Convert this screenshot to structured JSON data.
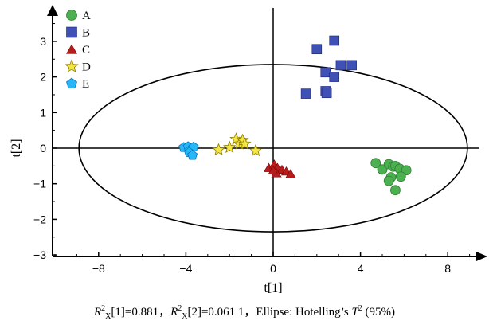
{
  "chart_data": {
    "type": "scatter",
    "title": "",
    "xlabel": "t[1]",
    "ylabel": "t[2]",
    "xlim": [
      -10,
      10
    ],
    "ylim": [
      -3,
      3.8
    ],
    "xticks": [
      -8,
      -4,
      0,
      4,
      8
    ],
    "yticks": [
      -3,
      -2,
      -1,
      0,
      1,
      2,
      3
    ],
    "tick_labels_x": [
      "−8",
      "−4",
      "0",
      "4",
      "8"
    ],
    "tick_labels_y": [
      "−3",
      "−2",
      "−1",
      "0",
      "1",
      "2",
      "3"
    ],
    "grid": false,
    "legend_position": "top-left",
    "ellipse": {
      "center": [
        0,
        0
      ],
      "semi_axis_x": 8.9,
      "semi_axis_y": 2.35
    },
    "series": [
      {
        "name": "A",
        "marker": "circle",
        "color": "#4caf50",
        "points": [
          [
            4.7,
            -0.42
          ],
          [
            5.0,
            -0.6
          ],
          [
            5.3,
            -0.45
          ],
          [
            5.5,
            -0.52
          ],
          [
            5.6,
            -0.5
          ],
          [
            5.8,
            -0.58
          ],
          [
            6.1,
            -0.62
          ],
          [
            5.4,
            -0.82
          ],
          [
            5.85,
            -0.8
          ],
          [
            5.3,
            -0.92
          ],
          [
            5.6,
            -1.18
          ]
        ]
      },
      {
        "name": "B",
        "marker": "square",
        "color": "#3f51b5",
        "points": [
          [
            2.8,
            3.02
          ],
          [
            2.0,
            2.78
          ],
          [
            3.1,
            2.33
          ],
          [
            3.6,
            2.33
          ],
          [
            2.4,
            2.13
          ],
          [
            2.8,
            2.0
          ],
          [
            2.4,
            1.6
          ],
          [
            2.45,
            1.55
          ],
          [
            1.5,
            1.53
          ]
        ]
      },
      {
        "name": "C",
        "marker": "triangle",
        "color": "#b71c1c",
        "points": [
          [
            -0.2,
            -0.55
          ],
          [
            0.05,
            -0.45
          ],
          [
            0.2,
            -0.55
          ],
          [
            0.4,
            -0.6
          ],
          [
            0.6,
            -0.65
          ],
          [
            0.8,
            -0.72
          ],
          [
            0.15,
            -0.7
          ],
          [
            0.0,
            -0.62
          ]
        ]
      },
      {
        "name": "D",
        "marker": "star",
        "color": "#f4e542",
        "points": [
          [
            -2.5,
            -0.05
          ],
          [
            -2.0,
            0.02
          ],
          [
            -1.7,
            0.25
          ],
          [
            -1.55,
            0.12
          ],
          [
            -1.4,
            0.22
          ],
          [
            -1.3,
            0.12
          ],
          [
            -0.8,
            -0.07
          ]
        ]
      },
      {
        "name": "E",
        "marker": "pentagon",
        "color": "#29b6f6",
        "points": [
          [
            -4.1,
            0.02
          ],
          [
            -3.9,
            0.04
          ],
          [
            -3.8,
            -0.05
          ],
          [
            -3.65,
            0.03
          ],
          [
            -3.85,
            -0.12
          ],
          [
            -3.7,
            -0.2
          ]
        ]
      }
    ]
  },
  "caption": {
    "r2_symbol": "R",
    "r2_sup": "2",
    "r2_sub": "X",
    "r2x1_text": "[1]=0.881，",
    "r2x2_text": "[2]=0.061 1，Ellipse: Hotelling’s ",
    "t_symbol": "T",
    "t_sup": "2",
    "tail": " (95%)"
  }
}
